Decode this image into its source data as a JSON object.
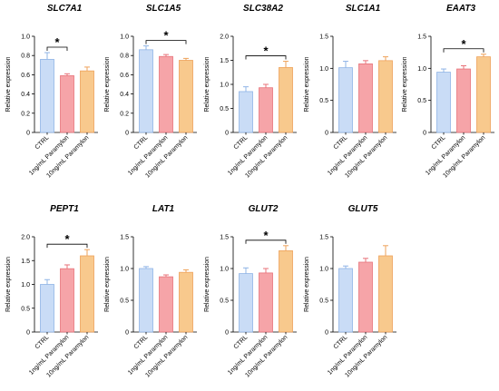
{
  "figure": {
    "categories": [
      "CTRL",
      "1ng/mL Paramylon",
      "10ng/mL Paramylon"
    ],
    "y_axis_label": "Relative expression",
    "colors": {
      "fills": [
        "#c9dcf6",
        "#f6a4a8",
        "#f8c98d"
      ],
      "strokes": [
        "#8fb4e6",
        "#e8737a",
        "#eea25a"
      ],
      "axis": "#000000"
    }
  },
  "chart_data": [
    {
      "type": "bar",
      "title": "SLC7A1",
      "categories": [
        "CTRL",
        "1ng/mL Paramylon",
        "10ng/mL Paramylon"
      ],
      "values": [
        0.76,
        0.59,
        0.64
      ],
      "errors": [
        0.07,
        0.02,
        0.04
      ],
      "ylim": [
        0,
        1.0
      ],
      "yticks": [
        "0",
        "0.2",
        "0.4",
        "0.6",
        "0.8",
        "1.0"
      ],
      "ylabel": "Relative expression",
      "significance": [
        {
          "from": 0,
          "to": 1,
          "label": "*"
        }
      ]
    },
    {
      "type": "bar",
      "title": "SLC1A5",
      "categories": [
        "CTRL",
        "1ng/mL Paramylon",
        "10ng/mL Paramylon"
      ],
      "values": [
        0.86,
        0.79,
        0.75
      ],
      "errors": [
        0.04,
        0.02,
        0.02
      ],
      "ylim": [
        0,
        1.0
      ],
      "yticks": [
        "0",
        "0.2",
        "0.4",
        "0.6",
        "0.8",
        "1.0"
      ],
      "ylabel": "Relative expression",
      "significance": [
        {
          "from": 0,
          "to": 2,
          "label": "*"
        }
      ]
    },
    {
      "type": "bar",
      "title": "SLC38A2",
      "categories": [
        "CTRL",
        "1ng/mL Paramylon",
        "10ng/mL Paramylon"
      ],
      "values": [
        0.85,
        0.93,
        1.35
      ],
      "errors": [
        0.1,
        0.07,
        0.13
      ],
      "ylim": [
        0,
        2.0
      ],
      "yticks": [
        "0",
        "0.5",
        "1.0",
        "1.5",
        "2.0"
      ],
      "ylabel": "Relative expression",
      "significance": [
        {
          "from": 0,
          "to": 2,
          "label": "*"
        }
      ]
    },
    {
      "type": "bar",
      "title": "SLC1A1",
      "categories": [
        "CTRL",
        "1ng/mL Paramylon",
        "10ng/mL Paramylon"
      ],
      "values": [
        1.01,
        1.07,
        1.12
      ],
      "errors": [
        0.1,
        0.05,
        0.06
      ],
      "ylim": [
        0,
        1.5
      ],
      "yticks": [
        "0",
        "0.5",
        "1.0",
        "1.5"
      ],
      "ylabel": "Relative expression",
      "significance": []
    },
    {
      "type": "bar",
      "title": "EAAT3",
      "categories": [
        "CTRL",
        "1ng/mL Paramylon",
        "10ng/mL Paramylon"
      ],
      "values": [
        0.94,
        0.99,
        1.18
      ],
      "errors": [
        0.05,
        0.05,
        0.04
      ],
      "ylim": [
        0,
        1.5
      ],
      "yticks": [
        "0",
        "0.5",
        "1.0",
        "1.5"
      ],
      "ylabel": "Relative expression",
      "significance": [
        {
          "from": 0,
          "to": 2,
          "label": "*"
        }
      ]
    },
    {
      "type": "bar",
      "title": "PEPT1",
      "categories": [
        "CTRL",
        "1ng/mL Paramylon",
        "10ng/mL Paramylon"
      ],
      "values": [
        1.0,
        1.33,
        1.6
      ],
      "errors": [
        0.1,
        0.08,
        0.13
      ],
      "ylim": [
        0,
        2.0
      ],
      "yticks": [
        "0",
        "0.5",
        "1.0",
        "1.5",
        "2.0"
      ],
      "ylabel": "Relative expression",
      "significance": [
        {
          "from": 0,
          "to": 2,
          "label": "*"
        }
      ]
    },
    {
      "type": "bar",
      "title": "LAT1",
      "categories": [
        "CTRL",
        "1ng/mL Paramylon",
        "10ng/mL Paramylon"
      ],
      "values": [
        1.0,
        0.87,
        0.94
      ],
      "errors": [
        0.03,
        0.03,
        0.04
      ],
      "ylim": [
        0,
        1.5
      ],
      "yticks": [
        "0",
        "0.5",
        "1.0",
        "1.5"
      ],
      "ylabel": "Relative expression",
      "significance": []
    },
    {
      "type": "bar",
      "title": "GLUT2",
      "categories": [
        "CTRL",
        "1ng/mL Paramylon",
        "10ng/mL Paramylon"
      ],
      "values": [
        0.92,
        0.93,
        1.28
      ],
      "errors": [
        0.09,
        0.07,
        0.08
      ],
      "ylim": [
        0,
        1.5
      ],
      "yticks": [
        "0",
        "0.5",
        "1.0",
        "1.5"
      ],
      "ylabel": "Relative expression",
      "significance": [
        {
          "from": 0,
          "to": 2,
          "label": "*"
        }
      ]
    },
    {
      "type": "bar",
      "title": "GLUT5",
      "categories": [
        "CTRL",
        "1ng/mL Paramylon",
        "10ng/mL Paramylon"
      ],
      "values": [
        1.0,
        1.1,
        1.2
      ],
      "errors": [
        0.04,
        0.06,
        0.16
      ],
      "ylim": [
        0,
        1.5
      ],
      "yticks": [
        "0",
        "0.5",
        "1.0",
        "1.5"
      ],
      "ylabel": "Relative expression",
      "significance": []
    }
  ]
}
